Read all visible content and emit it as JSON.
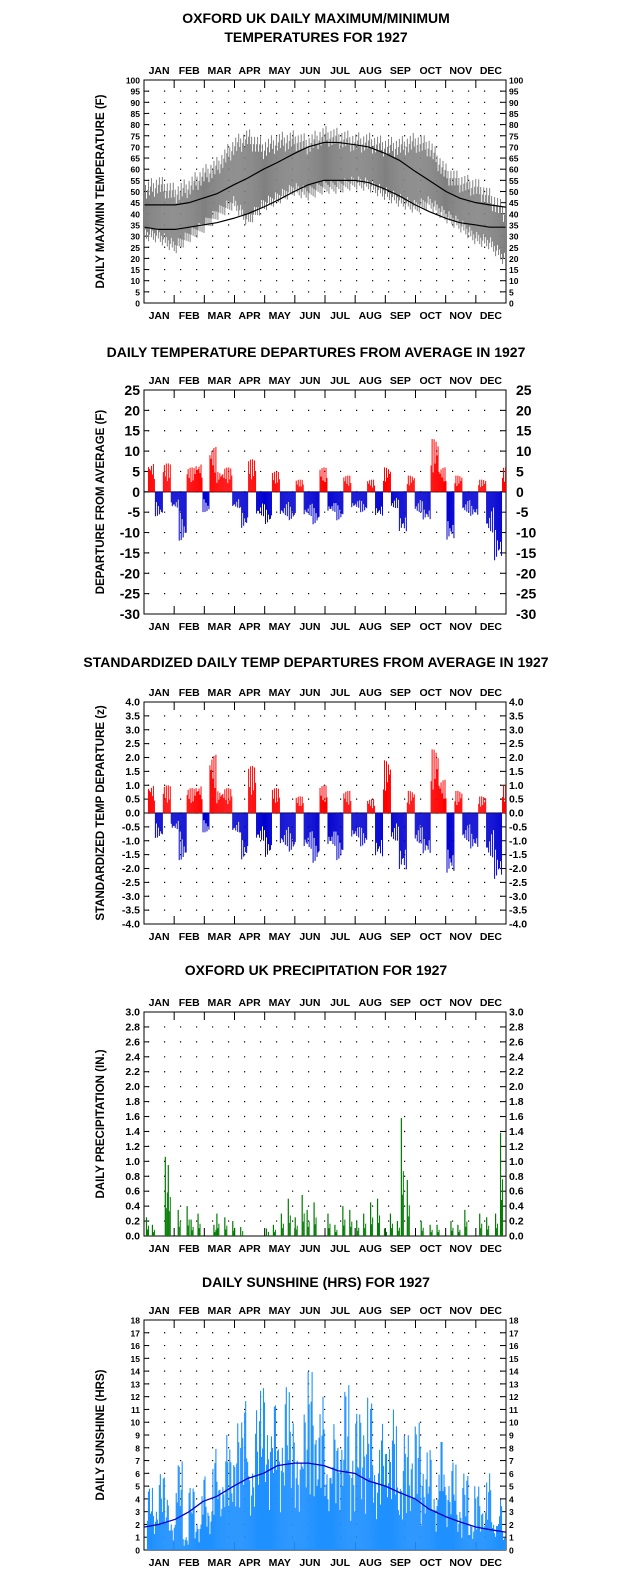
{
  "months": [
    "JAN",
    "FEB",
    "MAR",
    "APR",
    "MAY",
    "JUN",
    "JUL",
    "AUG",
    "SEP",
    "OCT",
    "NOV",
    "DEC"
  ],
  "colors": {
    "obs": "#808080",
    "pos": "#ff0000",
    "neg": "#0000d0",
    "precip": "#007a00",
    "sun": "#1e90ff",
    "sun_avg": "#0000c8"
  },
  "chart_data": [
    {
      "type": "line",
      "title_line1": "OXFORD UK DAILY MAXIMUM/MINIMUM",
      "title_line2": "TEMPERATURES FOR 1927",
      "ylabel": "DAILY MAX/MIN TEMPERATURE (F)",
      "ylim": [
        0,
        100
      ],
      "yticks": [
        "0",
        "5",
        "10",
        "15",
        "20",
        "25",
        "30",
        "35",
        "40",
        "45",
        "50",
        "55",
        "60",
        "65",
        "70",
        "75",
        "80",
        "85",
        "90",
        "95",
        "100"
      ],
      "series": [
        {
          "values_x_day": [
            1,
            15,
            32,
            46,
            60,
            74,
            91,
            105,
            121,
            135,
            152,
            166,
            182,
            196,
            213,
            227,
            244,
            258,
            274,
            288,
            305,
            319,
            335,
            349,
            365
          ],
          "values": [
            44,
            44,
            44,
            45,
            47,
            49,
            53,
            56,
            60,
            63,
            67,
            70,
            72,
            72,
            71,
            70,
            67,
            64,
            59,
            55,
            50,
            47,
            45,
            44,
            43
          ]
        },
        {
          "values_x_day": [
            1,
            15,
            32,
            46,
            60,
            74,
            91,
            105,
            121,
            135,
            152,
            166,
            182,
            196,
            213,
            227,
            244,
            258,
            274,
            288,
            305,
            319,
            335,
            349,
            365
          ],
          "values": [
            34,
            33,
            33,
            34,
            35,
            36,
            38,
            40,
            43,
            46,
            50,
            53,
            55,
            55,
            55,
            54,
            51,
            48,
            44,
            41,
            38,
            36,
            35,
            34,
            34
          ]
        }
      ],
      "observed": {
        "x_day": [
          1,
          15,
          32,
          46,
          60,
          74,
          91,
          105,
          121,
          135,
          152,
          166,
          182,
          196,
          213,
          227,
          244,
          258,
          274,
          288,
          305,
          319,
          335,
          349,
          365
        ],
        "high": [
          50,
          53,
          49,
          52,
          57,
          61,
          70,
          74,
          69,
          72,
          73,
          71,
          75,
          74,
          72,
          72,
          70,
          70,
          72,
          70,
          58,
          54,
          52,
          47,
          40
        ],
        "low": [
          34,
          33,
          28,
          33,
          37,
          43,
          48,
          40,
          47,
          50,
          54,
          52,
          55,
          55,
          57,
          56,
          52,
          49,
          46,
          48,
          42,
          38,
          32,
          30,
          22
        ]
      }
    },
    {
      "type": "bar",
      "title": "DAILY TEMPERATURE DEPARTURES FROM AVERAGE IN 1927",
      "ylabel": "DEPARTURE FROM AVERAGE (F)",
      "ylim": [
        -30,
        25
      ],
      "yticks": [
        "-30",
        "-25",
        "-20",
        "-15",
        "-10",
        "-5",
        "0",
        "5",
        "10",
        "15",
        "20",
        "25"
      ],
      "x_day": [
        5,
        12,
        20,
        28,
        36,
        44,
        52,
        60,
        67,
        74,
        82,
        90,
        98,
        106,
        114,
        122,
        130,
        138,
        146,
        154,
        162,
        170,
        178,
        186,
        194,
        202,
        210,
        218,
        226,
        234,
        242,
        250,
        258,
        266,
        274,
        282,
        290,
        298,
        306,
        314,
        322,
        330,
        338,
        346,
        354,
        362
      ],
      "values": [
        7,
        -6,
        7,
        -4,
        -12,
        6,
        7,
        -5,
        11,
        5,
        6,
        -4,
        -9,
        8,
        -6,
        -8,
        5,
        -6,
        -7,
        3,
        -6,
        -8,
        6,
        -5,
        -7,
        4,
        -4,
        -5,
        3,
        -6,
        6,
        -4,
        -10,
        4,
        -5,
        -7,
        13,
        6,
        -12,
        4,
        -5,
        -6,
        3,
        -10,
        -17,
        6
      ]
    },
    {
      "type": "bar",
      "title": "STANDARDIZED DAILY TEMP DEPARTURES FROM AVERAGE IN 1927",
      "ylabel": "STANDARDIZED TEMP DEPARTURE (z)",
      "ylim": [
        -4.0,
        4.0
      ],
      "yticks": [
        "-4.0",
        "-3.5",
        "-3.0",
        "-2.5",
        "-2.0",
        "-1.5",
        "-1.0",
        "-0.5",
        "0.0",
        "0.5",
        "1.0",
        "1.5",
        "2.0",
        "2.5",
        "3.0",
        "3.5",
        "4.0"
      ],
      "x_day": [
        5,
        12,
        20,
        28,
        36,
        44,
        52,
        60,
        67,
        74,
        82,
        90,
        98,
        106,
        114,
        122,
        130,
        138,
        146,
        154,
        162,
        170,
        178,
        186,
        194,
        202,
        210,
        218,
        226,
        234,
        242,
        250,
        258,
        266,
        274,
        282,
        290,
        298,
        306,
        314,
        322,
        330,
        338,
        346,
        354,
        362
      ],
      "values": [
        1.0,
        -0.9,
        1.0,
        -0.6,
        -1.7,
        0.9,
        1.0,
        -0.7,
        2.1,
        0.8,
        0.9,
        -0.7,
        -1.7,
        1.7,
        -1.0,
        -1.6,
        0.9,
        -1.2,
        -1.4,
        0.6,
        -1.3,
        -1.8,
        1.0,
        -1.2,
        -1.7,
        0.8,
        -0.9,
        -1.2,
        0.5,
        -1.6,
        1.9,
        -1.0,
        -2.1,
        0.8,
        -1.1,
        -1.5,
        2.3,
        1.2,
        -2.2,
        0.8,
        -1.0,
        -1.3,
        0.6,
        -1.6,
        -2.4,
        1.0
      ]
    },
    {
      "type": "bar",
      "title": "OXFORD UK PRECIPITATION FOR 1927",
      "ylabel": "DAILY PRECIPITATION (IN.)",
      "ylim": [
        0.0,
        3.0
      ],
      "yticks": [
        "0.0",
        "0.2",
        "0.4",
        "0.6",
        "0.8",
        "1.0",
        "1.2",
        "1.4",
        "1.6",
        "1.8",
        "2.0",
        "2.2",
        "2.4",
        "2.6",
        "2.8",
        "3.0"
      ],
      "x_day": [
        3,
        9,
        22,
        25,
        35,
        44,
        48,
        55,
        71,
        74,
        82,
        90,
        98,
        124,
        131,
        139,
        146,
        153,
        160,
        165,
        172,
        186,
        193,
        201,
        208,
        215,
        222,
        229,
        236,
        243,
        249,
        256,
        260,
        266,
        280,
        289,
        296,
        310,
        317,
        324,
        339,
        346,
        355,
        360
      ],
      "values": [
        0.25,
        0.15,
        1.06,
        0.95,
        0.35,
        0.4,
        0.22,
        0.3,
        0.15,
        0.3,
        0.25,
        0.2,
        0.12,
        0.1,
        0.15,
        0.3,
        0.5,
        0.25,
        0.55,
        0.35,
        0.45,
        0.3,
        0.15,
        0.4,
        0.35,
        0.2,
        0.3,
        0.45,
        0.5,
        0.1,
        0.3,
        0.2,
        1.58,
        0.75,
        0.2,
        0.15,
        0.15,
        0.2,
        0.15,
        0.35,
        0.3,
        0.25,
        0.3,
        1.38
      ]
    },
    {
      "type": "bar",
      "title": "DAILY SUNSHINE (HRS) FOR 1927",
      "ylabel": "DAILY SUNSHINE (HRS)",
      "ylim": [
        0,
        18
      ],
      "yticks": [
        "0",
        "1",
        "2",
        "3",
        "4",
        "5",
        "6",
        "7",
        "8",
        "9",
        "10",
        "11",
        "12",
        "13",
        "14",
        "15",
        "16",
        "17",
        "18"
      ],
      "x_day": [
        4,
        10,
        15,
        22,
        27,
        33,
        40,
        46,
        52,
        59,
        64,
        70,
        76,
        82,
        88,
        94,
        100,
        106,
        112,
        118,
        124,
        130,
        136,
        142,
        148,
        154,
        160,
        166,
        172,
        178,
        184,
        190,
        196,
        202,
        208,
        214,
        220,
        226,
        232,
        238,
        244,
        250,
        256,
        262,
        268,
        274,
        280,
        286,
        292,
        298,
        304,
        310,
        316,
        322,
        328,
        334,
        340,
        346,
        352,
        358,
        363
      ],
      "values": [
        5,
        3,
        6,
        4,
        2,
        7,
        1,
        5,
        2,
        6,
        3,
        8,
        5,
        9,
        7,
        10,
        12,
        6,
        11,
        13,
        9,
        12,
        8,
        13,
        10,
        7,
        11,
        14,
        9,
        12,
        6,
        10,
        8,
        13,
        7,
        11,
        9,
        12,
        6,
        10,
        8,
        11,
        5,
        9,
        7,
        10,
        6,
        8,
        4,
        9,
        5,
        7,
        3,
        6,
        2,
        5,
        3,
        6,
        2,
        4,
        1
      ],
      "average": {
        "x_day": [
          1,
          15,
          32,
          46,
          60,
          74,
          91,
          105,
          121,
          135,
          152,
          166,
          182,
          196,
          213,
          227,
          244,
          258,
          274,
          288,
          305,
          319,
          335,
          349,
          365
        ],
        "values": [
          1.8,
          2.0,
          2.4,
          3.0,
          3.8,
          4.2,
          5.0,
          5.6,
          6.0,
          6.6,
          6.8,
          6.8,
          6.6,
          6.2,
          6.0,
          5.4,
          5.0,
          4.5,
          4.0,
          3.2,
          2.6,
          2.2,
          1.8,
          1.6,
          1.4
        ]
      }
    }
  ]
}
